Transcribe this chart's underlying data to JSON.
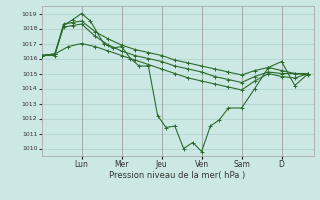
{
  "xlabel": "Pression niveau de la mer( hPa )",
  "bg_color": "#cce8e4",
  "grid_color": "#aacfca",
  "line_color": "#2d6b2d",
  "ylim": [
    1009.5,
    1019.5
  ],
  "yticks": [
    1010,
    1011,
    1012,
    1013,
    1014,
    1015,
    1016,
    1017,
    1018,
    1019
  ],
  "day_labels": [
    "Lun",
    "Mer",
    "Jeu",
    "Ven",
    "Sam",
    "D"
  ],
  "day_positions": [
    1,
    2,
    3,
    4,
    5,
    6
  ],
  "xlim": [
    0,
    6.8
  ],
  "series": [
    {
      "x": [
        0.0,
        0.33,
        0.55,
        0.78,
        1.0,
        1.22,
        1.55,
        1.78,
        2.0,
        2.22,
        2.44,
        2.67,
        2.9,
        3.11,
        3.33,
        3.55,
        3.78,
        4.0,
        4.22,
        4.44,
        4.67,
        5.0,
        5.33,
        5.67,
        6.0,
        6.33,
        6.67
      ],
      "y": [
        1016.2,
        1016.2,
        1018.2,
        1018.6,
        1019.0,
        1018.5,
        1017.0,
        1016.7,
        1016.8,
        1016.0,
        1015.5,
        1015.5,
        1012.2,
        1011.4,
        1011.5,
        1010.0,
        1010.4,
        1009.8,
        1011.5,
        1011.9,
        1012.7,
        1012.7,
        1014.0,
        1015.4,
        1015.8,
        1014.2,
        1015.0
      ]
    },
    {
      "x": [
        0.0,
        0.33,
        0.55,
        0.78,
        1.0,
        1.33,
        1.67,
        2.0,
        2.33,
        2.67,
        3.0,
        3.33,
        3.67,
        4.0,
        4.33,
        4.67,
        5.0,
        5.33,
        5.67,
        6.0,
        6.33,
        6.67
      ],
      "y": [
        1016.2,
        1016.3,
        1018.3,
        1018.4,
        1018.5,
        1017.8,
        1017.3,
        1016.9,
        1016.6,
        1016.4,
        1016.2,
        1015.9,
        1015.7,
        1015.5,
        1015.3,
        1015.1,
        1014.9,
        1015.2,
        1015.4,
        1015.2,
        1015.0,
        1015.0
      ]
    },
    {
      "x": [
        0.0,
        0.33,
        0.55,
        0.78,
        1.0,
        1.33,
        1.67,
        2.0,
        2.33,
        2.67,
        3.0,
        3.33,
        3.67,
        4.0,
        4.33,
        4.67,
        5.0,
        5.33,
        5.67,
        6.0,
        6.33,
        6.67
      ],
      "y": [
        1016.2,
        1016.3,
        1018.1,
        1018.2,
        1018.3,
        1017.5,
        1016.9,
        1016.5,
        1016.2,
        1016.0,
        1015.8,
        1015.5,
        1015.3,
        1015.1,
        1014.8,
        1014.6,
        1014.4,
        1014.8,
        1015.1,
        1015.0,
        1015.0,
        1014.9
      ]
    },
    {
      "x": [
        0.0,
        0.33,
        0.67,
        1.0,
        1.33,
        1.67,
        2.0,
        2.33,
        2.67,
        3.0,
        3.33,
        3.67,
        4.0,
        4.33,
        4.67,
        5.0,
        5.33,
        5.67,
        6.0,
        6.33,
        6.67
      ],
      "y": [
        1016.2,
        1016.3,
        1016.8,
        1017.0,
        1016.8,
        1016.5,
        1016.2,
        1015.9,
        1015.6,
        1015.3,
        1015.0,
        1014.7,
        1014.5,
        1014.3,
        1014.1,
        1013.9,
        1014.5,
        1015.0,
        1014.8,
        1014.7,
        1015.0
      ]
    }
  ]
}
